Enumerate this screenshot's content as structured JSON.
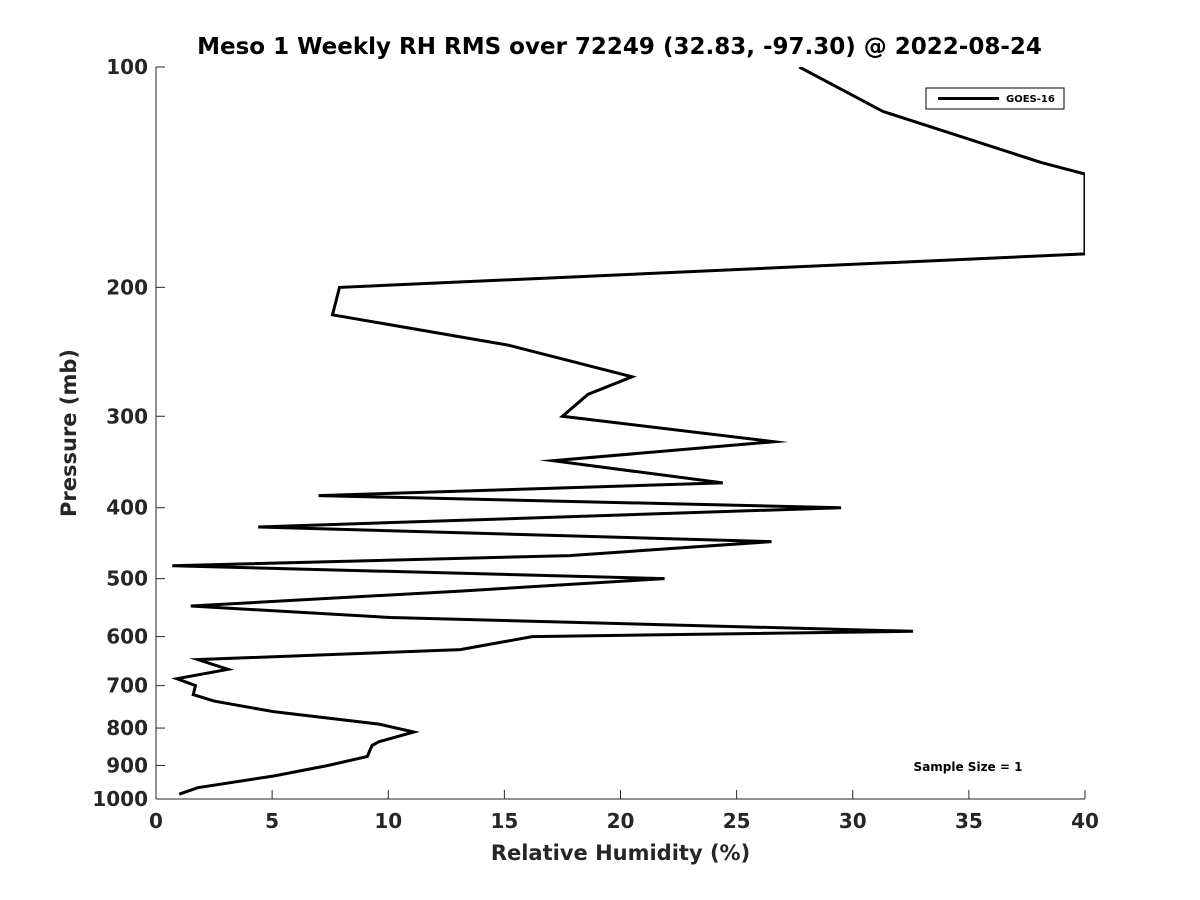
{
  "chart_data": {
    "type": "line",
    "title": "Meso 1 Weekly RH RMS over 72249 (32.83, -97.30) @ 2022-08-24",
    "xlabel": "Relative Humidity (%)",
    "ylabel": "Pressure (mb)",
    "xlim": [
      0,
      40
    ],
    "ylim": [
      1000,
      100
    ],
    "y_scale": "log",
    "y_inverted": true,
    "xticks": [
      0,
      5,
      10,
      15,
      20,
      25,
      30,
      35,
      40
    ],
    "yticks": [
      100,
      200,
      300,
      400,
      500,
      600,
      700,
      800,
      900,
      1000
    ],
    "grid": false,
    "legend_position": "top-right",
    "annotation": "Sample Size = 1",
    "series": [
      {
        "name": "GOES-16",
        "color": "#000000",
        "x": [
          27.7,
          31.3,
          38.1,
          40.0,
          40.0,
          7.9,
          7.6,
          15.2,
          20.5,
          18.6,
          17.5,
          26.6,
          17.1,
          24.4,
          7.0,
          29.5,
          4.4,
          26.5,
          17.8,
          0.7,
          21.9,
          13.1,
          1.5,
          10.1,
          32.6,
          16.2,
          13.1,
          1.8,
          3.1,
          0.9,
          1.7,
          1.6,
          2.5,
          5.1,
          9.6,
          11.1,
          9.6,
          9.3,
          9.1,
          7.4,
          5.1,
          1.8,
          1.0
        ],
        "y": [
          100,
          115,
          135,
          140,
          180,
          200,
          218,
          240,
          265,
          280,
          300,
          325,
          345,
          370,
          385,
          400,
          425,
          445,
          465,
          480,
          500,
          520,
          545,
          565,
          590,
          600,
          625,
          645,
          665,
          685,
          700,
          720,
          735,
          760,
          790,
          810,
          835,
          845,
          875,
          900,
          930,
          965,
          985
        ]
      }
    ]
  }
}
